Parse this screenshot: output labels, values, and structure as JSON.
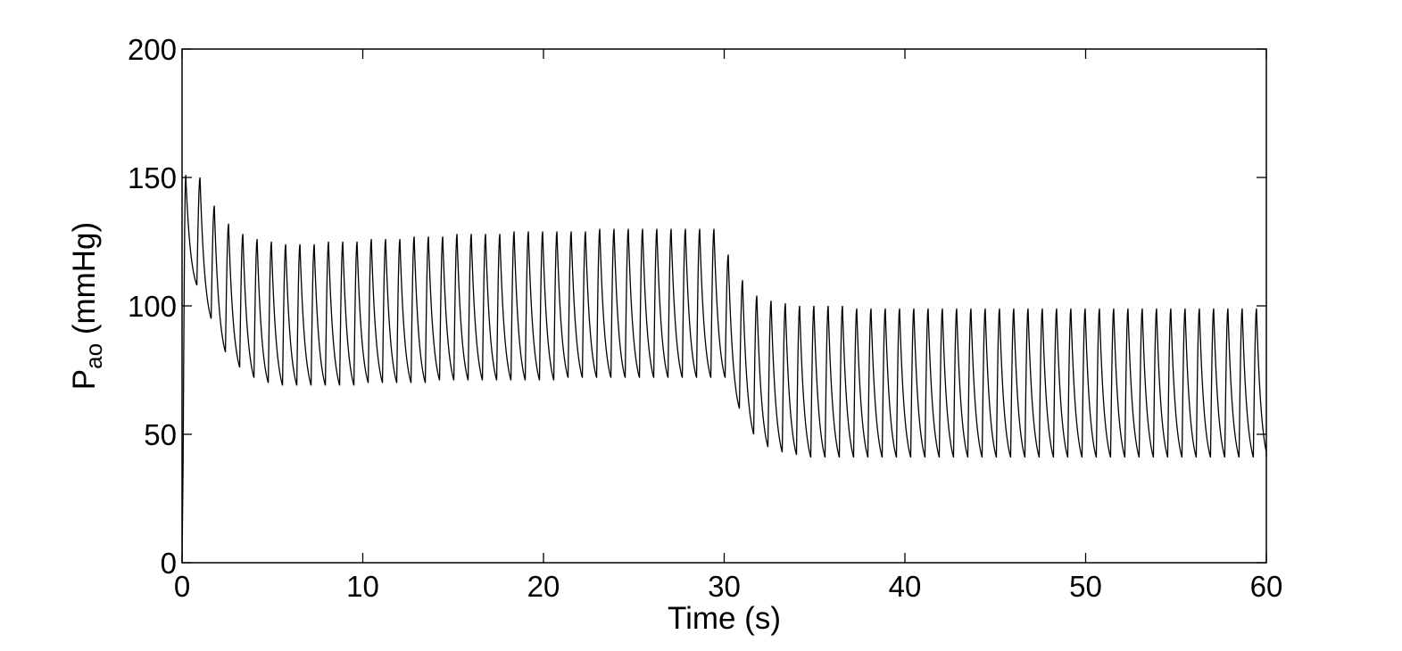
{
  "chart_data": {
    "type": "line",
    "title": "",
    "xlabel": "Time (s)",
    "ylabel": {
      "main": "P",
      "sub": "ao",
      "unit": " (mmHg)"
    },
    "xlim": [
      0,
      60
    ],
    "ylim": [
      0,
      200
    ],
    "xticks": [
      0,
      10,
      20,
      30,
      40,
      50,
      60
    ],
    "yticks": [
      0,
      50,
      100,
      150,
      200
    ],
    "grid": false,
    "legend": "none",
    "line_color": "#000000",
    "series": [
      {
        "beat_period_s": 0.79,
        "start_s": 0.0,
        "start_value": 0,
        "segments": [
          {
            "t_start": 0.0,
            "t_end": 30.0,
            "peaks": [
              151,
              150,
              139,
              132,
              128,
              126,
              125,
              124,
              124,
              124,
              125,
              125,
              125,
              126,
              126,
              126,
              127,
              127,
              127,
              128,
              128,
              128,
              128,
              129,
              129,
              129,
              129,
              129,
              129,
              130,
              130,
              130,
              130,
              130,
              130,
              130,
              130,
              130
            ],
            "troughs": [
              108,
              95,
              82,
              76,
              72,
              70,
              69,
              69,
              69,
              69,
              69,
              69,
              70,
              70,
              70,
              70,
              70,
              71,
              71,
              71,
              71,
              71,
              71,
              71,
              71,
              71,
              72,
              72,
              72,
              72,
              72,
              72,
              72,
              72,
              72,
              72,
              72,
              72
            ]
          },
          {
            "t_start": 30.0,
            "t_end": 60.0,
            "peaks": [
              120,
              110,
              104,
              102,
              101,
              100,
              100,
              100,
              100,
              99,
              99,
              99,
              99,
              99,
              99,
              99,
              99,
              99,
              99,
              99,
              99,
              99,
              99,
              99,
              99,
              99,
              99,
              99,
              99,
              99,
              99,
              99,
              99,
              99,
              99,
              99,
              99,
              99
            ],
            "troughs": [
              60,
              50,
              45,
              43,
              42,
              41,
              41,
              41,
              41,
              41,
              41,
              41,
              41,
              41,
              41,
              41,
              41,
              41,
              41,
              41,
              41,
              41,
              41,
              41,
              41,
              41,
              41,
              41,
              41,
              41,
              41,
              41,
              41,
              41,
              41,
              41,
              41,
              41
            ]
          }
        ],
        "end_value": 48
      }
    ]
  }
}
